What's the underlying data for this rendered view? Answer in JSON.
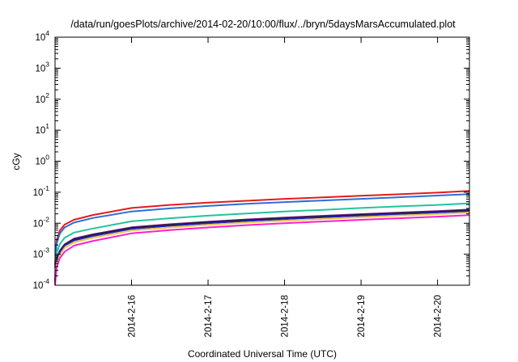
{
  "chart_data": {
    "type": "line",
    "title": "/data/run/goesPlots/archive/2014-02-20/10:00/flux/../bryn/5daysMarsAccumulated.plot",
    "xlabel": "Coordinated Universal Time (UTC)",
    "ylabel": "cGy",
    "y_scale": "log",
    "ylim": [
      0.0001,
      10000
    ],
    "y_ticks": [
      {
        "base": "10",
        "exp": "4",
        "value": 10000
      },
      {
        "base": "10",
        "exp": "3",
        "value": 1000
      },
      {
        "base": "10",
        "exp": "2",
        "value": 100
      },
      {
        "base": "10",
        "exp": "1",
        "value": 10
      },
      {
        "base": "10",
        "exp": "0",
        "value": 1
      },
      {
        "base": "10",
        "exp": "-1",
        "value": 0.1
      },
      {
        "base": "10",
        "exp": "-2",
        "value": 0.01
      },
      {
        "base": "10",
        "exp": "-3",
        "value": 0.001
      },
      {
        "base": "10",
        "exp": "-4",
        "value": 0.0001
      }
    ],
    "xlim": [
      "2014-02-15 00:00",
      "2014-02-20 10:00"
    ],
    "x_ticks": [
      {
        "label": "2014-2-16",
        "value": "2014-02-16 00:00"
      },
      {
        "label": "2014-2-17",
        "value": "2014-02-17 00:00"
      },
      {
        "label": "2014-2-18",
        "value": "2014-02-18 00:00"
      },
      {
        "label": "2014-2-19",
        "value": "2014-02-19 00:00"
      },
      {
        "label": "2014-2-20",
        "value": "2014-02-20 00:00"
      }
    ],
    "grid": false,
    "legend": "none",
    "x": [
      "2014-02-15 00:00",
      "2014-02-15 00:30",
      "2014-02-15 01:30",
      "2014-02-15 03:00",
      "2014-02-15 06:00",
      "2014-02-15 12:00",
      "2014-02-16 00:00",
      "2014-02-16 12:00",
      "2014-02-17 00:00",
      "2014-02-17 12:00",
      "2014-02-18 00:00",
      "2014-02-18 12:00",
      "2014-02-19 00:00",
      "2014-02-19 12:00",
      "2014-02-20 00:00",
      "2014-02-20 10:00"
    ],
    "series": [
      {
        "color": "#e41a1c",
        "values": [
          0.00045,
          0.0028,
          0.0058,
          0.009,
          0.013,
          0.0185,
          0.031,
          0.039,
          0.046,
          0.053,
          0.061,
          0.068,
          0.077,
          0.086,
          0.097,
          0.11
        ]
      },
      {
        "color": "#2b6fd8",
        "values": [
          0.00035,
          0.0022,
          0.0046,
          0.0073,
          0.0105,
          0.0148,
          0.024,
          0.03,
          0.036,
          0.042,
          0.048,
          0.054,
          0.061,
          0.069,
          0.078,
          0.087
        ]
      },
      {
        "color": "#22c49a",
        "values": [
          0.0002,
          0.0011,
          0.0021,
          0.0034,
          0.005,
          0.0068,
          0.0115,
          0.0145,
          0.0175,
          0.0205,
          0.024,
          0.027,
          0.031,
          0.035,
          0.039,
          0.044
        ]
      },
      {
        "color": "#7a1f8c",
        "values": [
          0.00014,
          0.0007,
          0.0013,
          0.0021,
          0.0032,
          0.0044,
          0.0074,
          0.0093,
          0.0112,
          0.0132,
          0.0152,
          0.0173,
          0.0196,
          0.022,
          0.0247,
          0.0275
        ]
      },
      {
        "color": "#1a1a1a",
        "values": [
          0.00013,
          0.00066,
          0.00123,
          0.002,
          0.003,
          0.0042,
          0.007,
          0.0088,
          0.0106,
          0.0125,
          0.0144,
          0.0164,
          0.0185,
          0.0208,
          0.0234,
          0.026
        ]
      },
      {
        "color": "#2323b5",
        "values": [
          0.00012,
          0.00062,
          0.00116,
          0.0019,
          0.0028,
          0.0039,
          0.0066,
          0.0083,
          0.01,
          0.0118,
          0.0136,
          0.0155,
          0.0175,
          0.0197,
          0.0221,
          0.0246
        ]
      },
      {
        "color": "#e8c84a",
        "values": [
          0.0001,
          0.0005,
          0.00095,
          0.0016,
          0.0024,
          0.0034,
          0.0058,
          0.0073,
          0.0089,
          0.0105,
          0.0121,
          0.0138,
          0.0156,
          0.0176,
          0.0197,
          0.022
        ]
      },
      {
        "color": "#ff1fd0",
        "values": [
          0.0001,
          0.00038,
          0.00075,
          0.0012,
          0.0019,
          0.0027,
          0.0047,
          0.006,
          0.0073,
          0.0087,
          0.01,
          0.0114,
          0.0129,
          0.0145,
          0.0163,
          0.0182
        ]
      }
    ]
  }
}
